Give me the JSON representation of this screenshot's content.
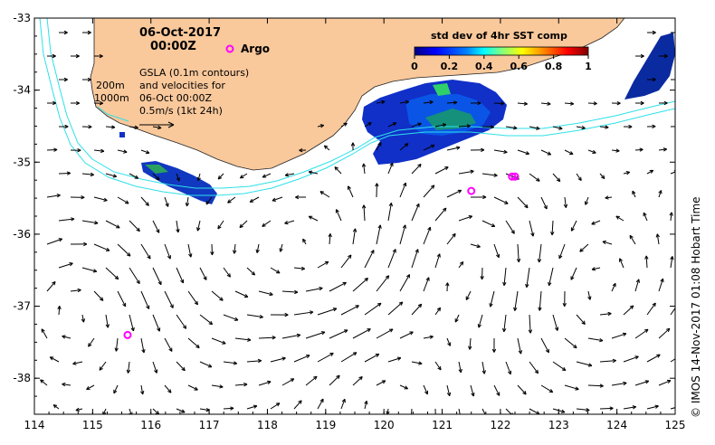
{
  "map": {
    "date": "06-Oct-2017",
    "time": "00:00Z",
    "argo_label": "Argo",
    "contour_labels": [
      "200m",
      "1000m"
    ],
    "gsla_lines": [
      "GSLA (0.1m contours)",
      "and velocities for",
      "06-Oct 00:00Z",
      "0.5m/s (1kt 24h)"
    ],
    "colorbar_title": "std dev of 4hr SST comp",
    "colorbar_ticks": [
      "0",
      "0.2",
      "0.4",
      "0.6",
      "0.8",
      "1"
    ],
    "credit": "© IMOS 14-Nov-2017 01:08 Hobart Time",
    "x_ticks": [
      "114",
      "115",
      "116",
      "117",
      "118",
      "119",
      "120",
      "121",
      "122",
      "123",
      "124",
      "125"
    ],
    "y_ticks": [
      "-33",
      "-34",
      "-35",
      "-36",
      "-37",
      "-38"
    ],
    "lon_range": [
      114,
      125
    ],
    "lat_range": [
      -38.5,
      -33
    ],
    "argo_floats": [
      [
        115.6,
        -37.4
      ],
      [
        121.5,
        -35.4
      ],
      [
        122.2,
        -35.2
      ],
      [
        122.25,
        -35.2
      ]
    ],
    "colors": {
      "land": "#f9c89b",
      "contour": "#2ee0e8",
      "argo": "#ff00ff",
      "colormap": [
        "#000080",
        "#0000ff",
        "#0080ff",
        "#00ffff",
        "#80ff80",
        "#ffff00",
        "#ff8000",
        "#ff0000",
        "#800000"
      ]
    }
  }
}
